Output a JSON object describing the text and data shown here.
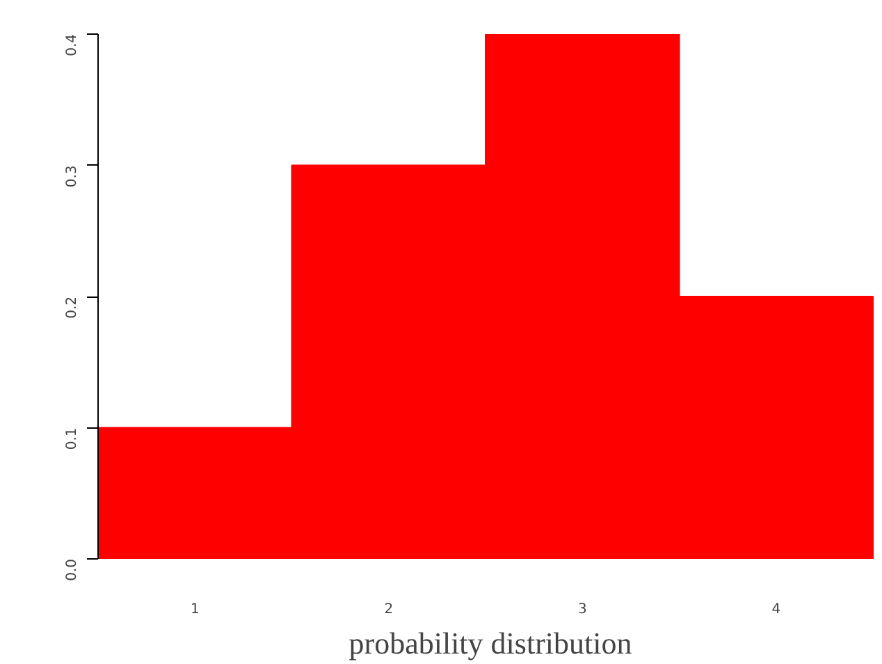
{
  "chart_data": {
    "type": "bar",
    "xlabel": "probability distribution",
    "categories": [
      "1",
      "2",
      "3",
      "4"
    ],
    "values": [
      0.1,
      0.3,
      0.4,
      0.2
    ],
    "color": "#ff0000",
    "ylim": [
      0,
      0.4
    ],
    "yticks": [
      {
        "value": 0,
        "label": "0.0"
      },
      {
        "value": 0.1,
        "label": "0.1"
      },
      {
        "value": 0.2,
        "label": "0.2"
      },
      {
        "value": 0.3,
        "label": "0.3"
      },
      {
        "value": 0.4,
        "label": "0.4"
      }
    ],
    "grid": false
  }
}
